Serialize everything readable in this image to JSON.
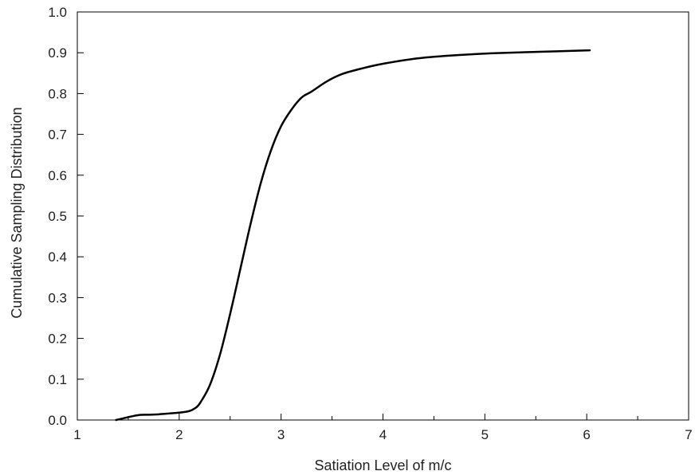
{
  "chart_data": {
    "type": "line",
    "title": "",
    "xlabel": "Satiation Level of m/c",
    "ylabel": "Cumulative Sampling Distribution",
    "xlim": [
      1,
      7
    ],
    "ylim": [
      0,
      1.0
    ],
    "x_ticks": [
      "1",
      "2",
      "3",
      "4",
      "5",
      "6",
      "7"
    ],
    "y_ticks": [
      "0.0",
      "0.1",
      "0.2",
      "0.3",
      "0.4",
      "0.5",
      "0.6",
      "0.7",
      "0.8",
      "0.9",
      "1.0"
    ],
    "grid": false,
    "legend": "none",
    "series": [
      {
        "color": "#000000",
        "x": [
          1.38,
          1.5,
          1.6,
          1.7,
          1.8,
          1.9,
          2.0,
          2.1,
          2.15,
          2.2,
          2.3,
          2.4,
          2.5,
          2.6,
          2.7,
          2.8,
          2.9,
          3.0,
          3.1,
          3.2,
          3.3,
          3.45,
          3.6,
          3.8,
          4.0,
          4.3,
          4.6,
          5.0,
          5.5,
          6.03
        ],
        "y": [
          0.0,
          0.007,
          0.012,
          0.013,
          0.014,
          0.016,
          0.018,
          0.022,
          0.028,
          0.04,
          0.085,
          0.16,
          0.26,
          0.37,
          0.48,
          0.58,
          0.66,
          0.72,
          0.76,
          0.79,
          0.805,
          0.83,
          0.848,
          0.862,
          0.873,
          0.885,
          0.892,
          0.898,
          0.902,
          0.906
        ]
      }
    ]
  }
}
